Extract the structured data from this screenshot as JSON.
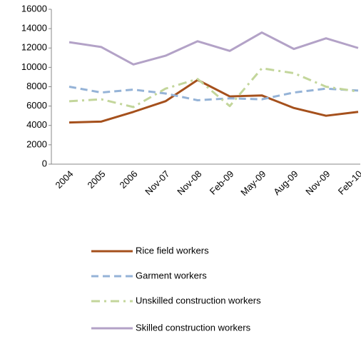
{
  "chart_data": {
    "type": "line",
    "categories": [
      "2004",
      "2005",
      "2006",
      "Nov-07",
      "Nov-08",
      "Feb-09",
      "May-09",
      "Aug-09",
      "Nov-09",
      "Feb-10"
    ],
    "series": [
      {
        "name": "Rice field workers",
        "color": "#a5501c",
        "dash": "solid",
        "values": [
          4300,
          4400,
          5400,
          6500,
          8700,
          7000,
          7100,
          5800,
          5000,
          5400
        ]
      },
      {
        "name": "Garment workers",
        "color": "#95b3d7",
        "dash": "dash",
        "values": [
          8000,
          7400,
          7700,
          7300,
          6600,
          6800,
          6700,
          7400,
          7800,
          7600
        ]
      },
      {
        "name": "Unskilled construction workers",
        "color": "#c3d69b",
        "dash": "dashdot",
        "values": [
          6500,
          6700,
          5900,
          7800,
          8800,
          6000,
          9900,
          9400,
          8000,
          7500
        ]
      },
      {
        "name": "Skilled construction workers",
        "color": "#b3a2c7",
        "dash": "solid",
        "values": [
          12600,
          12100,
          10300,
          11200,
          12700,
          11700,
          13600,
          11900,
          13000,
          12000
        ]
      }
    ],
    "ylim": [
      0,
      16000
    ],
    "yticks": [
      0,
      2000,
      4000,
      6000,
      8000,
      10000,
      12000,
      14000,
      16000
    ],
    "legend": "bottom"
  }
}
